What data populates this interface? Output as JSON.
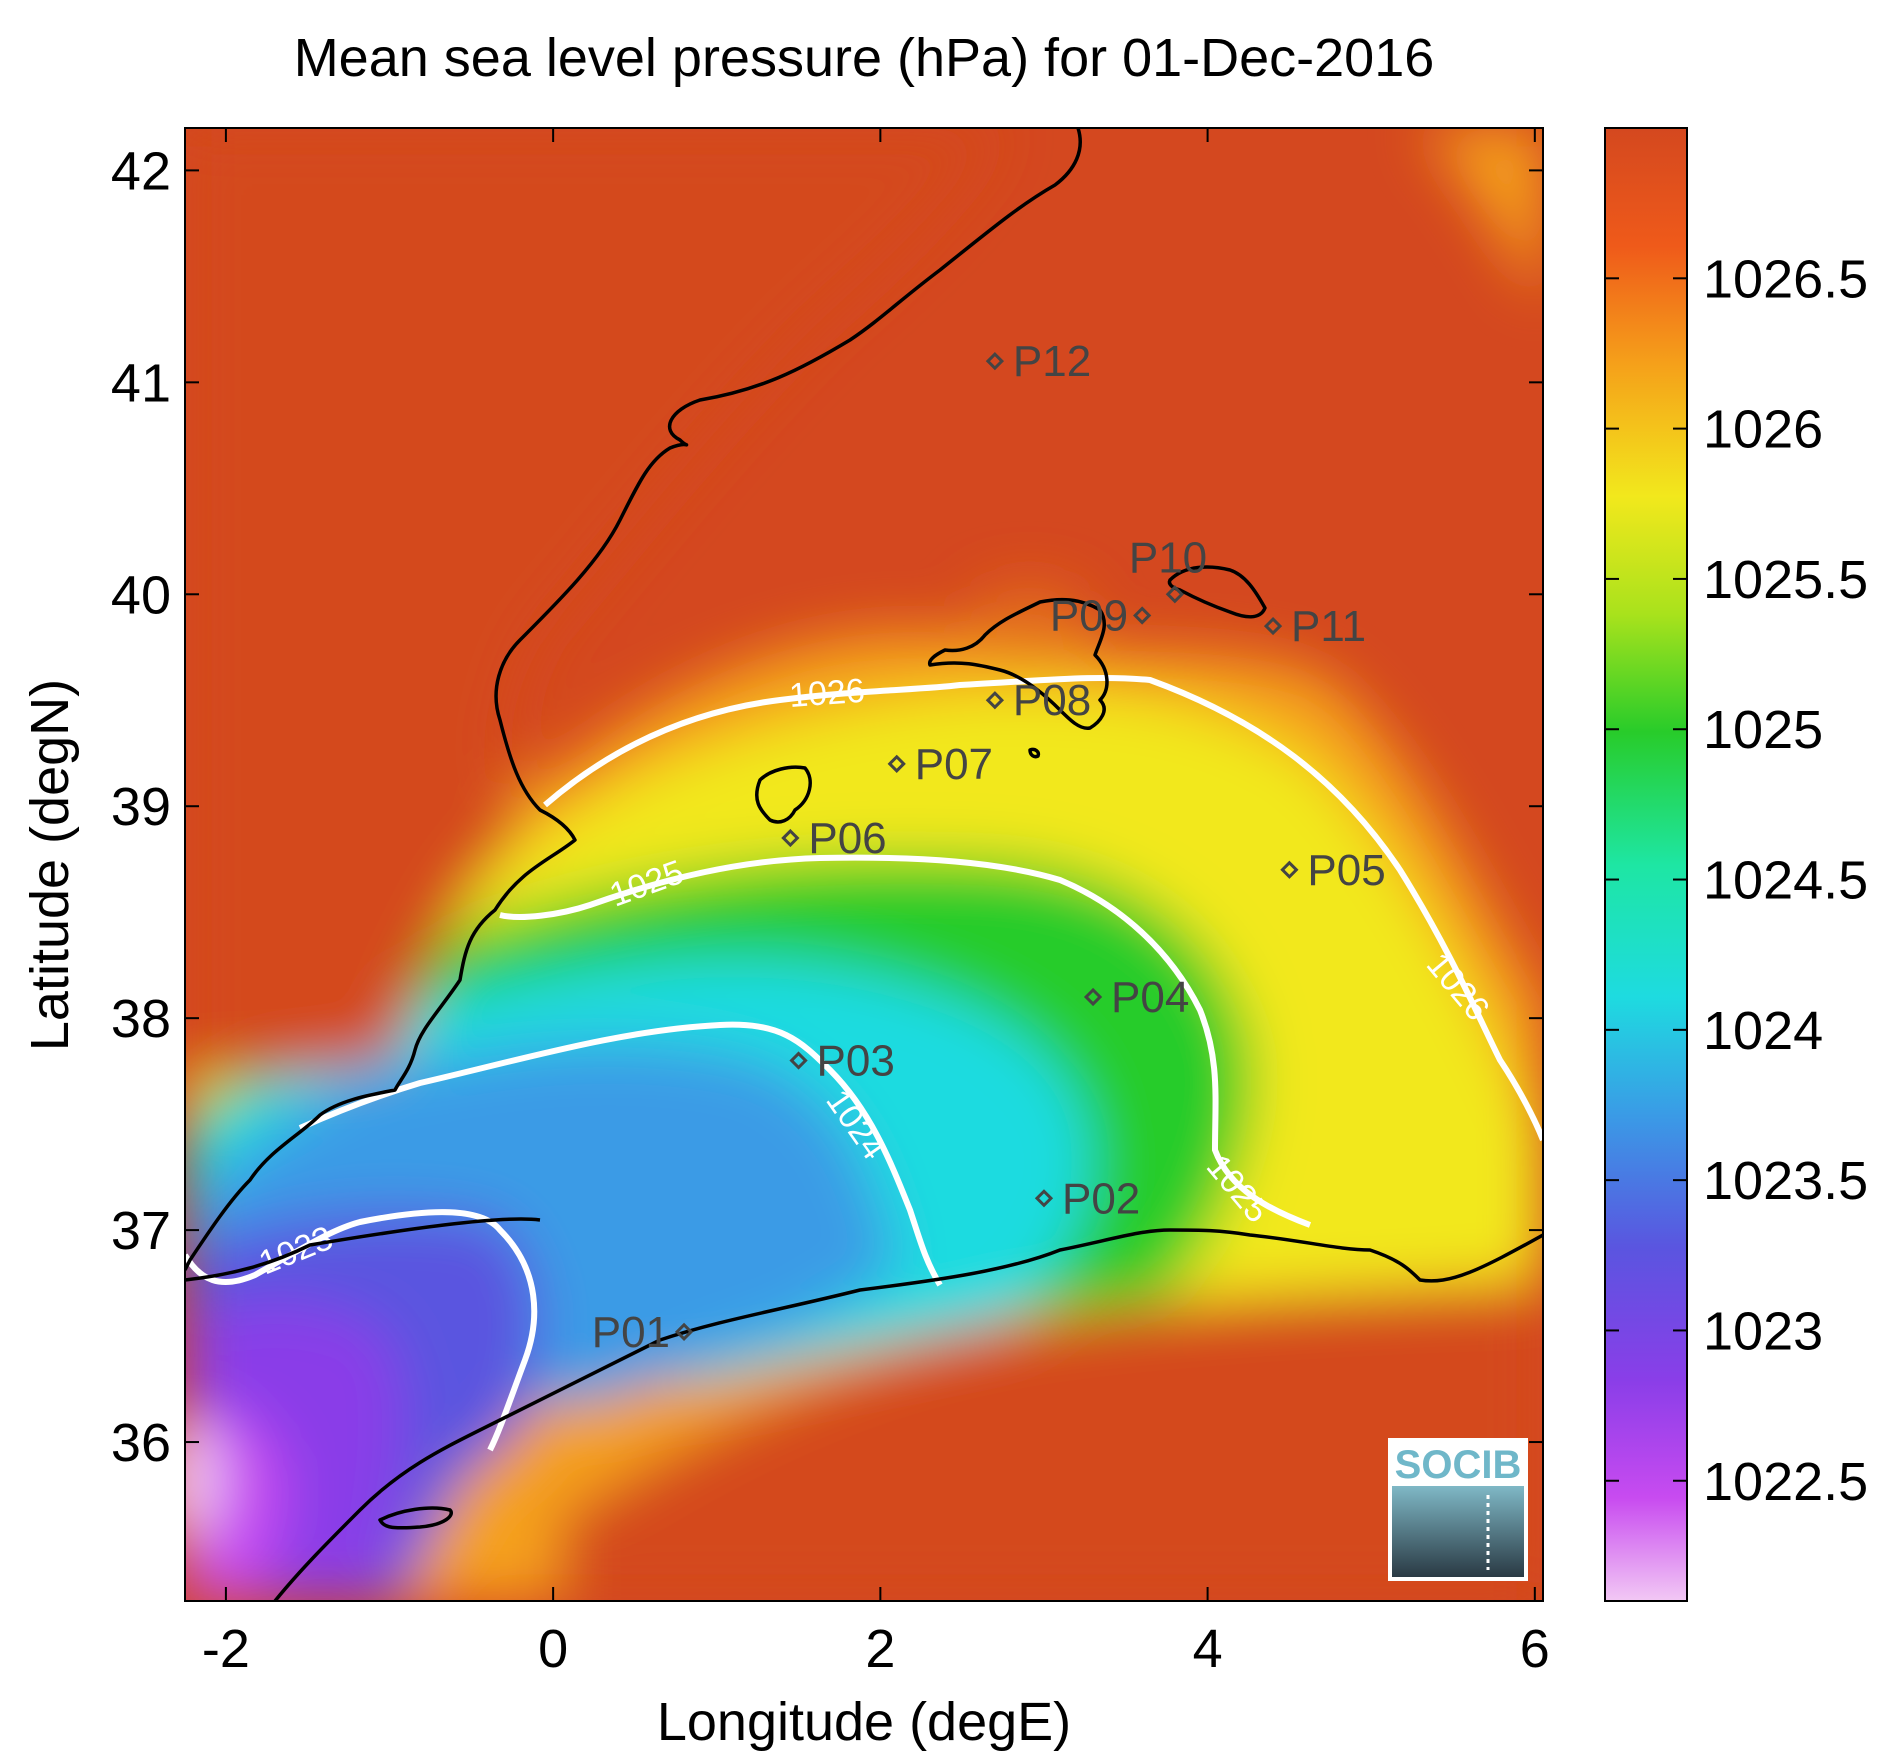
{
  "title": "Mean sea level pressure (hPa) for 01-Dec-2016",
  "xlabel": "Longitude (degE)",
  "ylabel": "Latitude (degN)",
  "x_ticks": [
    "-2",
    "0",
    "2",
    "4",
    "6"
  ],
  "y_ticks": [
    "42",
    "41",
    "40",
    "39",
    "38",
    "37",
    "36"
  ],
  "colorbar": {
    "ticks": [
      "1026.5",
      "1026",
      "1025.5",
      "1025",
      "1024.5",
      "1024",
      "1023.5",
      "1023",
      "1022.5"
    ],
    "colors": [
      "#d4481f",
      "#ef5a1a",
      "#f5a01a",
      "#f2e81c",
      "#a9e21c",
      "#28cc2a",
      "#1ee6a3",
      "#1edbe0",
      "#3a9be6",
      "#5a55e0",
      "#8a3ee8",
      "#c84bf0",
      "#f2c8f4"
    ]
  },
  "logo": {
    "text": "SOCIB"
  },
  "contour_labels": [
    "1026",
    "1025",
    "1024",
    "1023",
    "1025",
    "1026"
  ],
  "stations": [
    {
      "id": "P01",
      "lon": 0.8,
      "lat": 36.52
    },
    {
      "id": "P02",
      "lon": 3.0,
      "lat": 37.15
    },
    {
      "id": "P03",
      "lon": 1.5,
      "lat": 37.8
    },
    {
      "id": "P04",
      "lon": 3.3,
      "lat": 38.1
    },
    {
      "id": "P05",
      "lon": 4.5,
      "lat": 38.7
    },
    {
      "id": "P06",
      "lon": 1.45,
      "lat": 38.85
    },
    {
      "id": "P07",
      "lon": 2.1,
      "lat": 39.2
    },
    {
      "id": "P08",
      "lon": 2.7,
      "lat": 39.5
    },
    {
      "id": "P09",
      "lon": 3.6,
      "lat": 39.9
    },
    {
      "id": "P10",
      "lon": 3.8,
      "lat": 40.0
    },
    {
      "id": "P11",
      "lon": 4.4,
      "lat": 39.85
    },
    {
      "id": "P12",
      "lon": 2.7,
      "lat": 41.1
    }
  ],
  "chart_data": {
    "type": "heatmap",
    "title": "Mean sea level pressure (hPa) for 01-Dec-2016",
    "xlabel": "Longitude (degE)",
    "ylabel": "Latitude (degN)",
    "xlim": [
      -2.25,
      6.05
    ],
    "ylim": [
      35.25,
      42.2
    ],
    "colorbar_range": [
      1022.1,
      1027
    ],
    "contour_levels": [
      1023,
      1024,
      1025,
      1026
    ]
  }
}
